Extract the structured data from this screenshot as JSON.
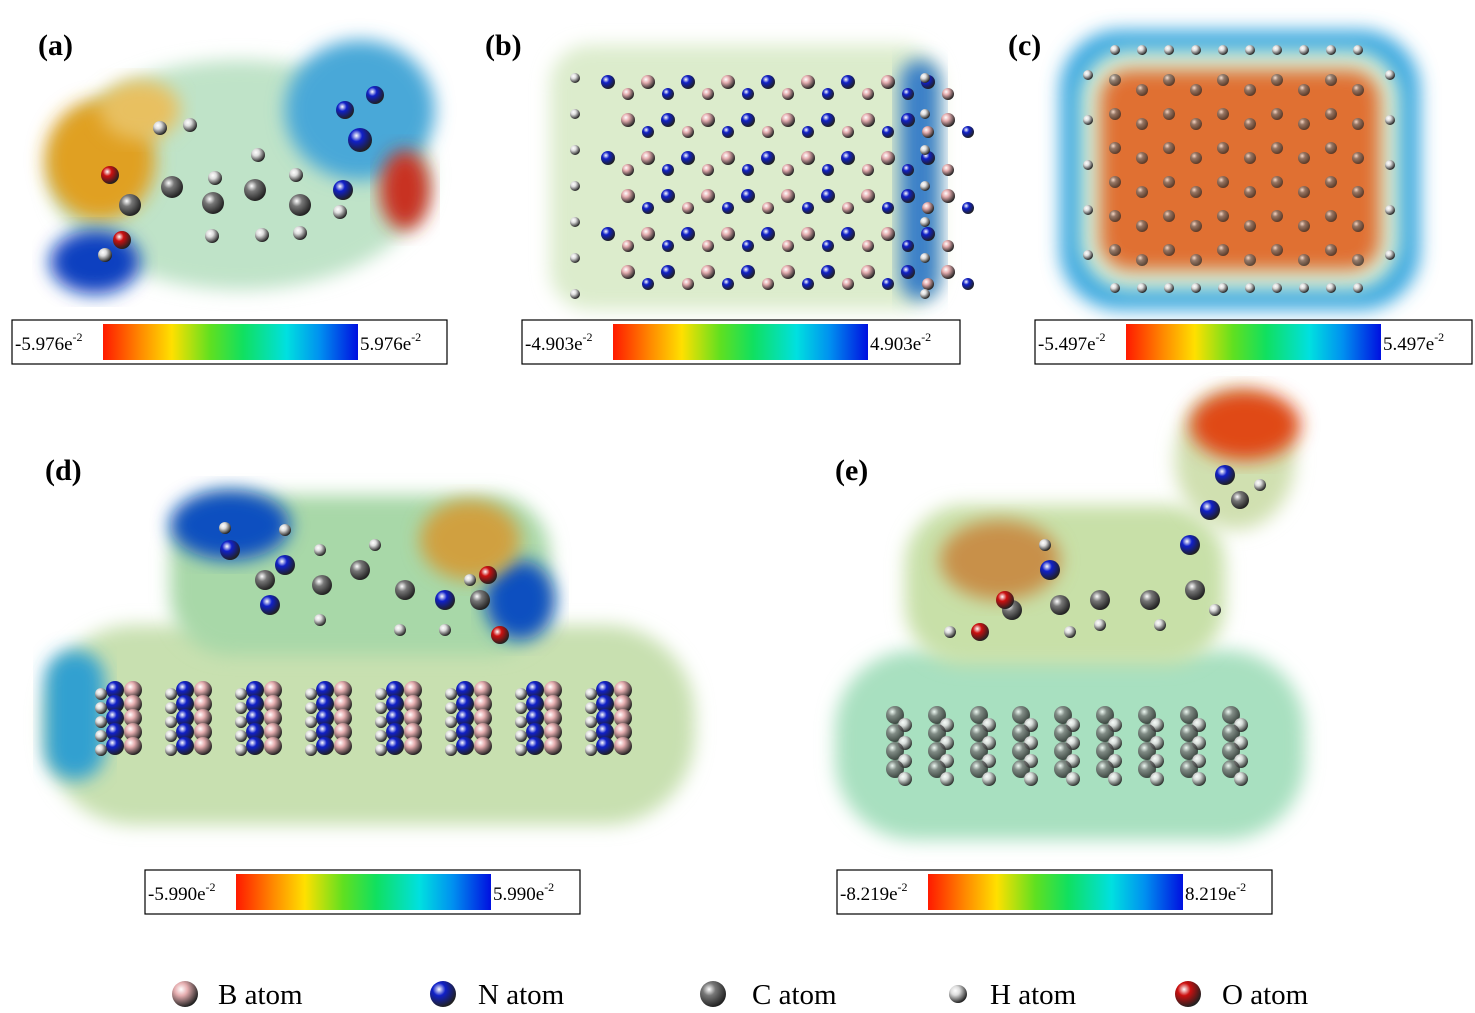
{
  "panels": [
    {
      "label": "(a)",
      "colorbar": {
        "min": {
          "base": "-5.976e",
          "exp": "-2"
        },
        "max": {
          "base": "5.976e",
          "exp": "-2"
        }
      }
    },
    {
      "label": "(b)",
      "colorbar": {
        "min": {
          "base": "-4.903e",
          "exp": "-2"
        },
        "max": {
          "base": "4.903e",
          "exp": "-2"
        }
      }
    },
    {
      "label": "(c)",
      "colorbar": {
        "min": {
          "base": "-5.497e",
          "exp": "-2"
        },
        "max": {
          "base": "5.497e",
          "exp": "-2"
        }
      }
    },
    {
      "label": "(d)",
      "colorbar": {
        "min": {
          "base": "-5.990e",
          "exp": "-2"
        },
        "max": {
          "base": "5.990e",
          "exp": "-2"
        }
      }
    },
    {
      "label": "(e)",
      "colorbar": {
        "min": {
          "base": "-8.219e",
          "exp": "-2"
        },
        "max": {
          "base": "8.219e",
          "exp": "-2"
        }
      }
    }
  ],
  "legend": [
    {
      "label": "B atom",
      "color": "#e6aeb0"
    },
    {
      "label": "N atom",
      "color": "#1020c8"
    },
    {
      "label": "C atom",
      "color": "#777777"
    },
    {
      "label": "H atom",
      "color": "#dddddd"
    },
    {
      "label": "O atom",
      "color": "#cc1010"
    }
  ]
}
